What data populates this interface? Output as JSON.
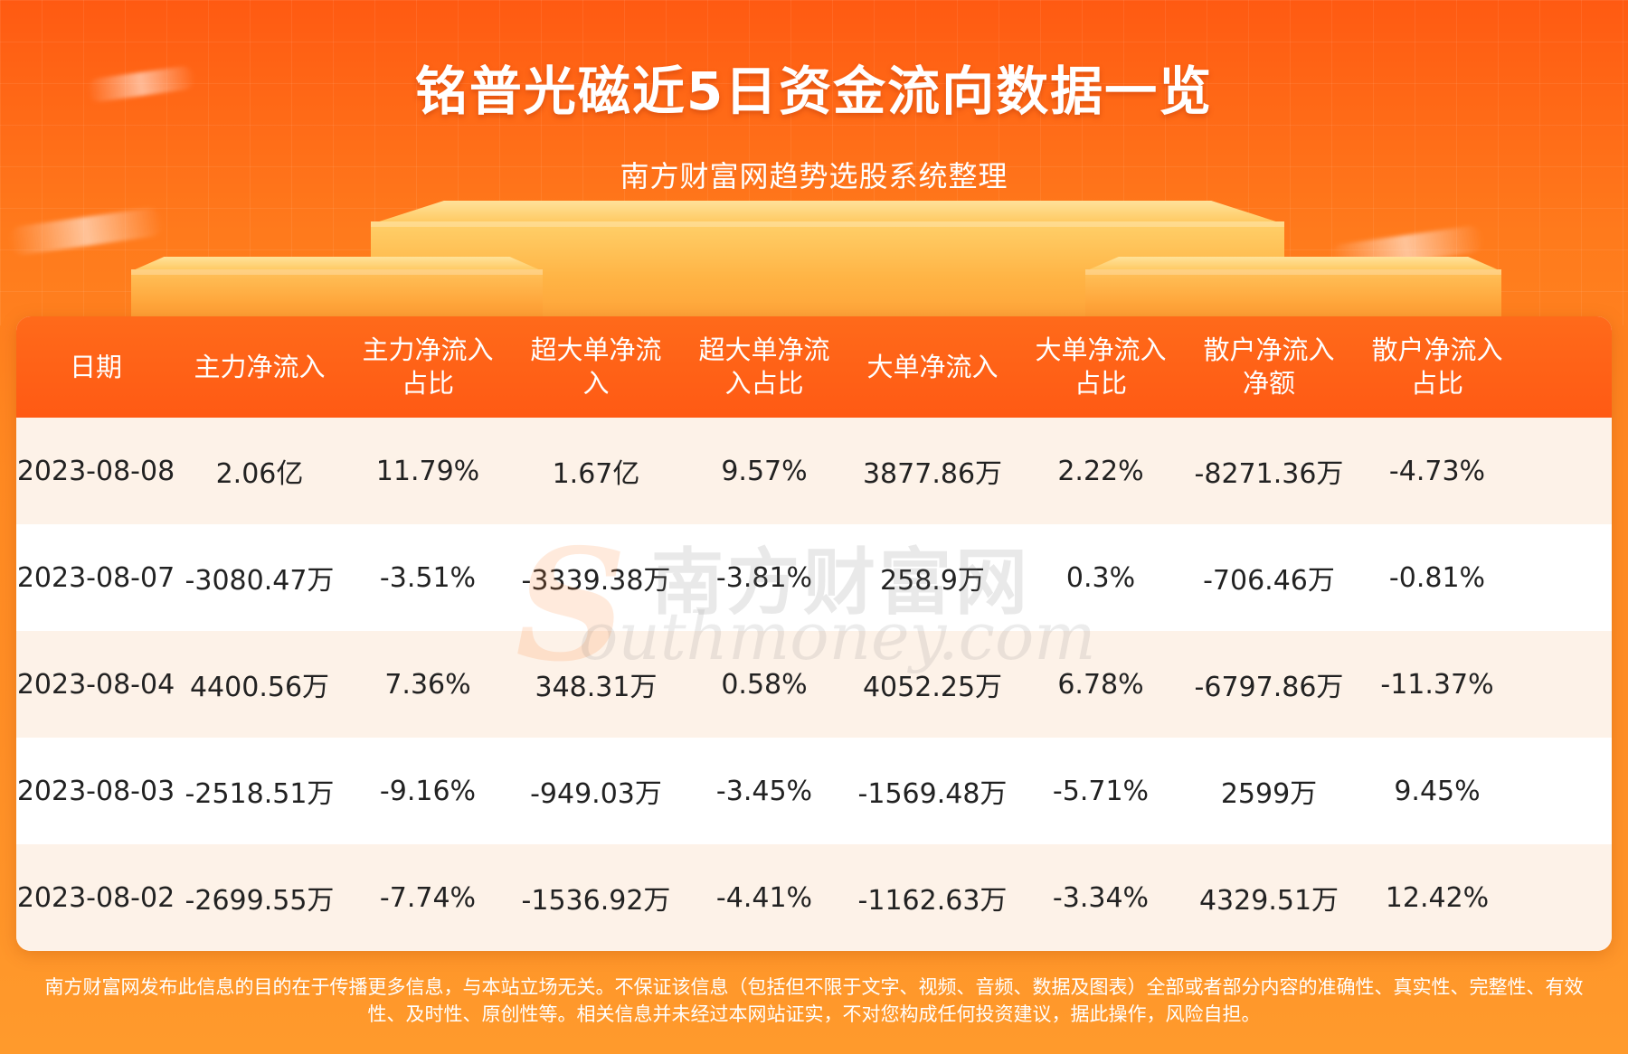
{
  "title": "铭普光磁近5日资金流向数据一览",
  "subtitle": "南方财富网趋势选股系统整理",
  "table": {
    "headers": [
      [
        "日期"
      ],
      [
        "主力净流入"
      ],
      [
        "主力净流入",
        "占比"
      ],
      [
        "超大单净流",
        "入"
      ],
      [
        "超大单净流",
        "入占比"
      ],
      [
        "大单净流入"
      ],
      [
        "大单净流入",
        "占比"
      ],
      [
        "散户净流入",
        "净额"
      ],
      [
        "散户净流入",
        "占比"
      ]
    ],
    "rows": [
      [
        "2023-08-08",
        "2.06亿",
        "11.79%",
        "1.67亿",
        "9.57%",
        "3877.86万",
        "2.22%",
        "-8271.36万",
        "-4.73%"
      ],
      [
        "2023-08-07",
        "-3080.47万",
        "-3.51%",
        "-3339.38万",
        "-3.81%",
        "258.9万",
        "0.3%",
        "-706.46万",
        "-0.81%"
      ],
      [
        "2023-08-04",
        "4400.56万",
        "7.36%",
        "348.31万",
        "0.58%",
        "4052.25万",
        "6.78%",
        "-6797.86万",
        "-11.37%"
      ],
      [
        "2023-08-03",
        "-2518.51万",
        "-9.16%",
        "-949.03万",
        "-3.45%",
        "-1569.48万",
        "-5.71%",
        "2599万",
        "9.45%"
      ],
      [
        "2023-08-02",
        "-2699.55万",
        "-7.74%",
        "-1536.92万",
        "-4.41%",
        "-1162.63万",
        "-3.34%",
        "4329.51万",
        "12.42%"
      ]
    ]
  },
  "watermark": {
    "chinese": "南方财富网",
    "english": "outhmoney.com",
    "initial": "S"
  },
  "disclaimer": {
    "line1": "南方财富网发布此信息的目的在于传播更多信息，与本站立场无关。不保证该信息（包括但不限于文字、视频、音频、数据及图表）全部或者部分内容的准确性、真实性、完整性、有效",
    "line2": "性、及时性、原创性等。相关信息并未经过本网站证实，不对您构成任何投资建议，据此操作，风险自担。"
  },
  "colors": {
    "header_bg": "#ff5a14",
    "row_alt_bg": "#fdf2e8",
    "page_bg": "#ff8a22",
    "text": "#222222"
  }
}
